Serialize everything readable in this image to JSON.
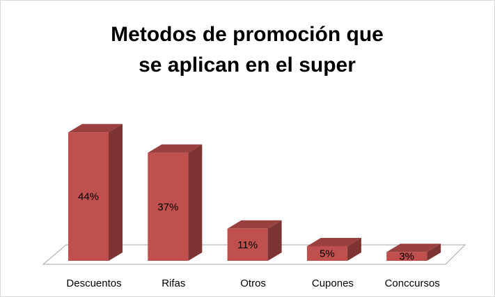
{
  "chart_data": {
    "type": "bar3d",
    "title": "Metodos de promoción que se aplican en el super",
    "categories": [
      "Descuentos",
      "Rifas",
      "Otros",
      "Cupones",
      "Conccursos"
    ],
    "values": [
      44,
      37,
      11,
      5,
      3
    ],
    "value_labels": [
      "44%",
      "37%",
      "11%",
      "5%",
      "3%"
    ],
    "color": "#c0504d"
  }
}
